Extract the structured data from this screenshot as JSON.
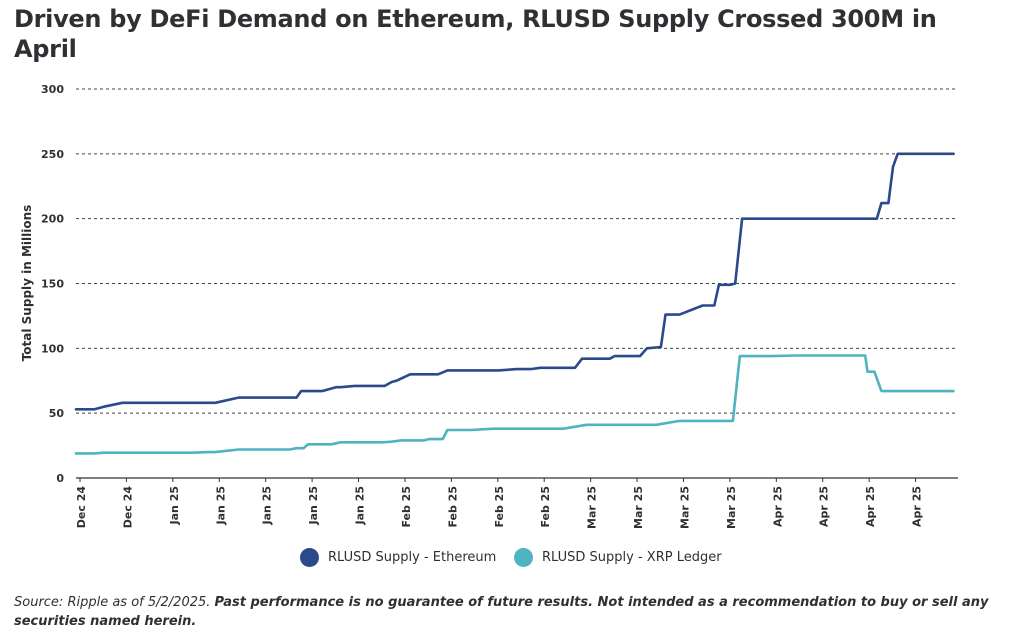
{
  "chart_data": {
    "type": "line",
    "title": "Driven by DeFi Demand on Ethereum, RLUSD Supply Crossed 300M in April",
    "xlabel": "",
    "ylabel": "Total Supply in Millions",
    "ylim": [
      0,
      300
    ],
    "yticks": [
      0,
      50,
      100,
      150,
      200,
      250,
      300
    ],
    "grid": true,
    "legend_position": "bottom-center",
    "x_tick_labels": [
      "Dec 24",
      "Dec 24",
      "Jan 25",
      "Jan 25",
      "Jan 25",
      "Jan 25",
      "Jan 25",
      "Feb 25",
      "Feb 25",
      "Feb 25",
      "Feb 25",
      "Mar 25",
      "Mar 25",
      "Mar 25",
      "Mar 25",
      "Apr 25",
      "Apr 25",
      "Apr 25",
      "Apr 25"
    ],
    "x_range": [
      0,
      19
    ],
    "series": [
      {
        "name": "RLUSD Supply - Ethereum",
        "color": "#2a4a8c",
        "x": [
          0,
          0.3,
          0.4,
          0.6,
          1.0,
          1.5,
          2.0,
          2.5,
          2.65,
          2.8,
          3.0,
          3.5,
          3.85,
          4.0,
          4.5,
          4.75,
          4.85,
          5.2,
          5.3,
          5.6,
          5.7,
          6.0,
          6.1,
          6.5,
          6.65,
          6.8,
          6.9,
          7.2,
          7.3,
          7.5,
          7.8,
          8.0,
          8.5,
          9.0,
          9.1,
          9.5,
          9.8,
          10.0,
          10.5,
          10.75,
          10.9,
          11.0,
          11.5,
          11.6,
          11.95,
          12.15,
          12.3,
          12.6,
          12.7,
          13.0,
          13.5,
          13.75,
          13.85,
          14.1,
          14.2,
          14.35,
          15.0,
          16.0,
          17.0,
          17.25,
          17.35,
          17.5,
          17.6,
          17.7,
          17.8,
          18.0,
          18.5,
          18.9
        ],
        "values": [
          53,
          53,
          53,
          55,
          58,
          58,
          58,
          58,
          58,
          58,
          58,
          62,
          62,
          62,
          62,
          62,
          67,
          67,
          67,
          70,
          70,
          71,
          71,
          71,
          71,
          74,
          75,
          80,
          80,
          80,
          80,
          83,
          83,
          83,
          83,
          84,
          84,
          85,
          85,
          85,
          92,
          92,
          92,
          94,
          94,
          94,
          100,
          101,
          126,
          126,
          133,
          133,
          149,
          149,
          150,
          200,
          200,
          200,
          200,
          200,
          212,
          212,
          240,
          250,
          250,
          250,
          250,
          250
        ]
      },
      {
        "name": "RLUSD Supply - XRP Ledger",
        "color": "#4fb3c2",
        "x": [
          0,
          0.4,
          0.6,
          1.0,
          1.5,
          2.0,
          2.5,
          2.85,
          3.0,
          3.5,
          3.6,
          3.8,
          4.0,
          4.5,
          4.6,
          4.75,
          4.9,
          5.0,
          5.3,
          5.5,
          5.7,
          6.0,
          6.3,
          6.6,
          6.8,
          7.0,
          7.3,
          7.5,
          7.6,
          7.9,
          8.0,
          8.5,
          9.0,
          9.5,
          9.9,
          10.0,
          10.5,
          11.0,
          11.5,
          12.0,
          12.2,
          12.3,
          12.5,
          13.0,
          13.5,
          14.0,
          14.1,
          14.15,
          14.3,
          15.0,
          15.5,
          16.0,
          16.5,
          17.0,
          17.05,
          17.2,
          17.35,
          17.45,
          17.6,
          18.0,
          18.9
        ],
        "values": [
          19,
          19,
          19.5,
          19.5,
          19.5,
          19.5,
          19.5,
          20,
          20,
          22,
          22,
          22,
          22,
          22,
          22,
          23,
          23,
          26,
          26,
          26,
          27.5,
          27.5,
          27.5,
          27.5,
          28,
          29,
          29,
          29,
          30,
          30,
          37,
          37,
          38,
          38,
          38,
          38,
          38,
          41,
          41,
          41,
          41,
          41,
          41,
          44,
          44,
          44,
          44,
          44,
          94,
          94,
          94.5,
          94.5,
          94.5,
          94.5,
          82,
          82,
          67,
          67,
          67,
          67,
          67
        ]
      }
    ]
  },
  "legend": {
    "ethereum_label": "RLUSD Supply - Ethereum",
    "xrp_label": "RLUSD Supply - XRP Ledger"
  },
  "footnote": {
    "source": "Source: Ripple as of 5/2/2025.",
    "disclaimer": "Past performance is no guarantee of future results. Not intended as a recommendation to buy or sell any securities named herein."
  }
}
